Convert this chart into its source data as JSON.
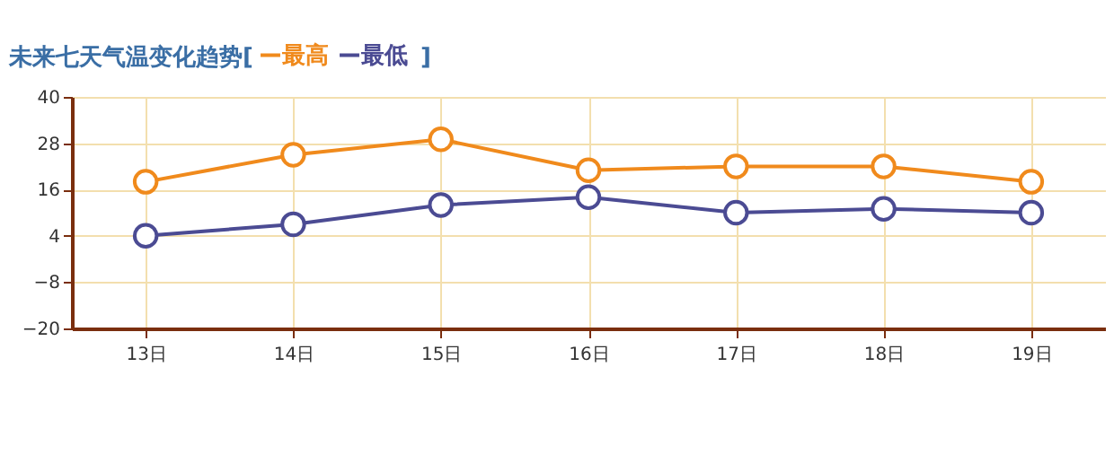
{
  "chart_data": {
    "type": "line",
    "title": "未来七天气温变化趋势[",
    "legend": "top left",
    "marker": "circle",
    "grid": true,
    "annotations": [
      "]"
    ],
    "categories": [
      "13日",
      "14日",
      "15日",
      "16日",
      "17日",
      "18日",
      "19日"
    ],
    "series": [
      {
        "name": "最高",
        "color": "#f08a1c",
        "values": [
          18,
          25,
          29,
          21,
          22,
          22,
          18
        ]
      },
      {
        "name": "最低",
        "color": "#4b4b93",
        "values": [
          4,
          7,
          12,
          14,
          10,
          11,
          10
        ]
      }
    ],
    "ylim": [
      -20,
      40
    ],
    "yticks": [
      -20,
      -8,
      4,
      16,
      28,
      40
    ]
  }
}
